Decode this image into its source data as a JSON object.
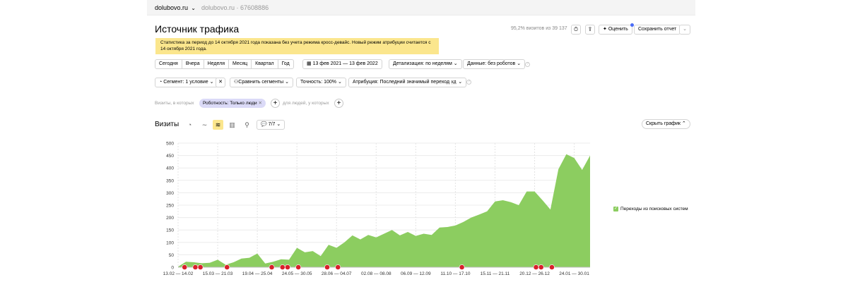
{
  "topbar": {
    "site": "dolubovo.ru",
    "counter": "dolubovo.ru · 67608886"
  },
  "header": {
    "title": "Источник трафика",
    "visits_summary": "95,2% визитов из 39 137",
    "rate_label": "Оценить",
    "save_label": "Сохранить отчет"
  },
  "notice": {
    "text": "Статистика за период до 14 октября 2021 года показана без учета режима кросс-девайс. Новый режим атрибуции считается с 14 октября 2021 года."
  },
  "period": {
    "buttons": [
      "Сегодня",
      "Вчера",
      "Неделя",
      "Месяц",
      "Квартал",
      "Год"
    ],
    "date_range": "13 фев 2021 — 13 фев 2022",
    "detail": "Детализация: по неделям",
    "data": "Данные: без роботов"
  },
  "segment": {
    "segment_label": "Сегмент: 1 условие",
    "compare_label": "Сравнить сегменты",
    "accuracy_label": "Точность: 100%",
    "attribution_label": "Атрибуция: Последний значимый переход",
    "attribution_badge": "КД"
  },
  "filters": {
    "prefix": "Визиты, в которых",
    "chip": "Роботность: Только люди",
    "suffix": "для людей, у которых"
  },
  "chart_header": {
    "label": "Визиты",
    "annotations": "7/7",
    "hide_label": "Скрыть график"
  },
  "legend": {
    "label": "Переходы из поисковых систем"
  },
  "colors": {
    "area": "#8ccd60",
    "marker": "#d8202b",
    "notice": "#fbe68d",
    "chip": "#dbdaf7"
  },
  "chart_data": {
    "type": "area",
    "ylim": [
      0,
      500
    ],
    "yticks": [
      0,
      50,
      100,
      150,
      200,
      250,
      300,
      350,
      400,
      450,
      500
    ],
    "x_labels": [
      "13.02 — 14.02",
      "15.03 — 21.03",
      "19.04 — 25.04",
      "24.05 — 30.05",
      "28.06 — 04.07",
      "02.08 — 08.08",
      "06.09 — 12.09",
      "11.10 — 17.10",
      "15.11 — 21.11",
      "20.12 — 26.12",
      "24.01 — 30.01"
    ],
    "series": [
      {
        "name": "Переходы из поисковых систем",
        "values": [
          2,
          22,
          20,
          16,
          18,
          30,
          10,
          20,
          35,
          38,
          55,
          15,
          22,
          32,
          30,
          78,
          60,
          65,
          45,
          90,
          78,
          100,
          128,
          112,
          130,
          120,
          135,
          150,
          128,
          142,
          126,
          135,
          130,
          160,
          162,
          168,
          182,
          200,
          212,
          225,
          265,
          270,
          262,
          250,
          305,
          305,
          270,
          232,
          395,
          455,
          440,
          392,
          450
        ]
      }
    ],
    "marker_rows": [
      [
        "a",
        "b",
        "c",
        "d",
        "e",
        "f"
      ],
      [
        "g",
        "h",
        "i",
        "j",
        "k",
        "l"
      ]
    ]
  }
}
